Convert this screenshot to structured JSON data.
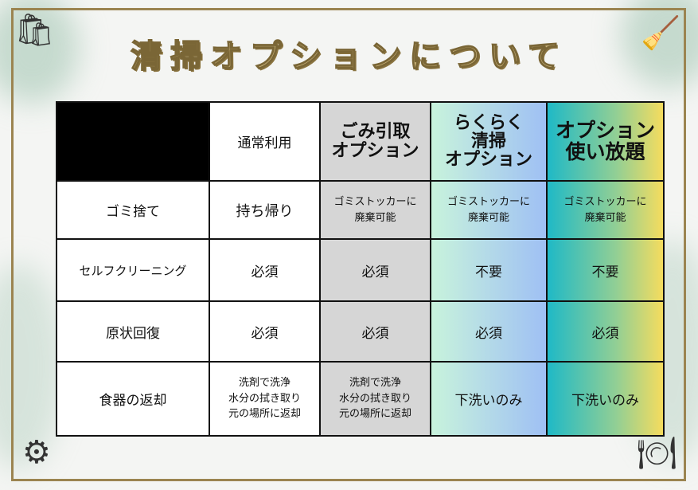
{
  "title": "清掃オプションについて",
  "table": {
    "headers": [
      "",
      "通常利用",
      "ごみ引取\nオプション",
      "らくらく\n清掃\nオプション",
      "オプション\n使い放題"
    ],
    "rows": [
      {
        "label": "ゴミ捨て",
        "values": [
          "持ち帰り",
          "ゴミストッカーに\n廃棄可能",
          "ゴミストッカーに\n廃棄可能",
          "ゴミストッカーに\n廃棄可能"
        ]
      },
      {
        "label": "セルフクリーニング",
        "values": [
          "必須",
          "必須",
          "不要",
          "不要"
        ]
      },
      {
        "label": "原状回復",
        "values": [
          "必須",
          "必須",
          "必須",
          "必須"
        ]
      },
      {
        "label": "食器の返却",
        "values": [
          "洗剤で洗浄\n水分の拭き取り\n元の場所に返却",
          "洗剤で洗浄\n水分の拭き取り\n元の場所に返却",
          "下洗いのみ",
          "下洗いのみ"
        ]
      }
    ]
  },
  "colors": {
    "frame": "#9b8450",
    "header_gray": "#d6d6d6",
    "accent_teal": "#1fb9c6",
    "accent_yellow": "#f5dc5e"
  },
  "icons": [
    "garbage-bag-icon",
    "broom-icon",
    "vacuum-cleaner-icon",
    "dish-washing-icon"
  ]
}
